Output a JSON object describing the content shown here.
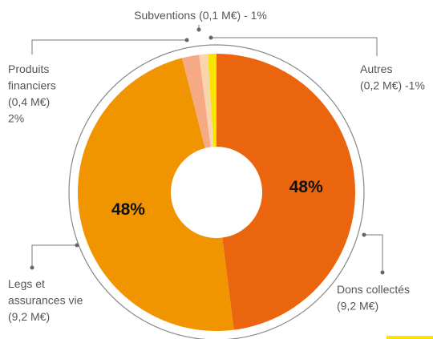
{
  "chart_data": {
    "type": "donut",
    "categories": [
      [
        "Dons collectés",
        "(9,2 M€)"
      ],
      [
        "Legs et",
        "assurances vie",
        "(9,2 M€)"
      ],
      [
        "Produits",
        "financiers",
        "(0,4 M€)",
        "2%"
      ],
      [
        "Subventions (0,1 M€) - 1%"
      ],
      [
        "Autres",
        "(0,2 M€) -1%"
      ]
    ],
    "values": [
      48,
      48,
      2,
      1,
      1
    ],
    "value_labels": [
      "48%",
      "48%",
      null,
      null,
      null
    ],
    "colors": [
      "#ea650d",
      "#f09500",
      "#f5aa85",
      "#f9d5ad",
      "#f8e400"
    ]
  }
}
